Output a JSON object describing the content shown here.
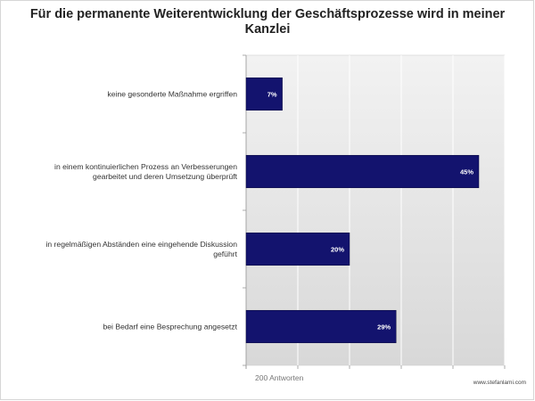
{
  "chart_data": {
    "type": "bar",
    "orientation": "horizontal",
    "title": "Für die permanente Weiterentwicklung der Geschäftsprozesse wird in meiner Kanzlei",
    "categories": [
      "keine gesonderte Maßnahme ergriffen",
      "in einem kontinuierlichen Prozess an Verbesserungen gearbeitet und deren Umsetzung überprüft",
      "in regelmäßigen Abständen eine eingehende Diskussion geführt",
      "bei Bedarf eine Besprechung angesetzt"
    ],
    "category_lines": [
      [
        "keine gesonderte Maßnahme ergriffen"
      ],
      [
        "in einem kontinuierlichen Prozess an Verbesserungen",
        "gearbeitet und deren Umsetzung überprüft"
      ],
      [
        "in regelmäßigen Abständen eine eingehende Diskussion",
        "geführt"
      ],
      [
        "bei Bedarf eine Besprechung angesetzt"
      ]
    ],
    "values": [
      7,
      45,
      20,
      29
    ],
    "value_labels": [
      "7%",
      "45%",
      "20%",
      "29%"
    ],
    "xlim": [
      0,
      50
    ],
    "grid": true,
    "legend": "none",
    "bar_color": "#13136e",
    "plot_background": "#e4e4e4",
    "note": "200 Antworten"
  },
  "watermark": "www.stefanlami.com"
}
